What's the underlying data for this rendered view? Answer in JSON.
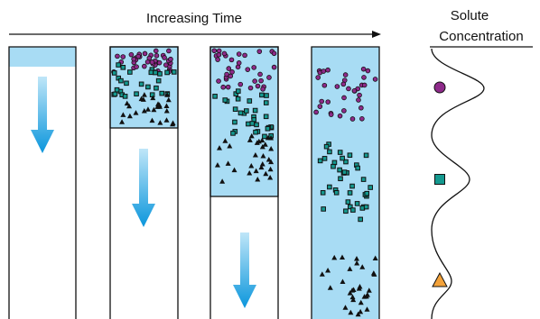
{
  "header": {
    "title": "Increasing Time"
  },
  "legend": {
    "title_lines": [
      "Solute",
      "Concentration"
    ]
  }
}
